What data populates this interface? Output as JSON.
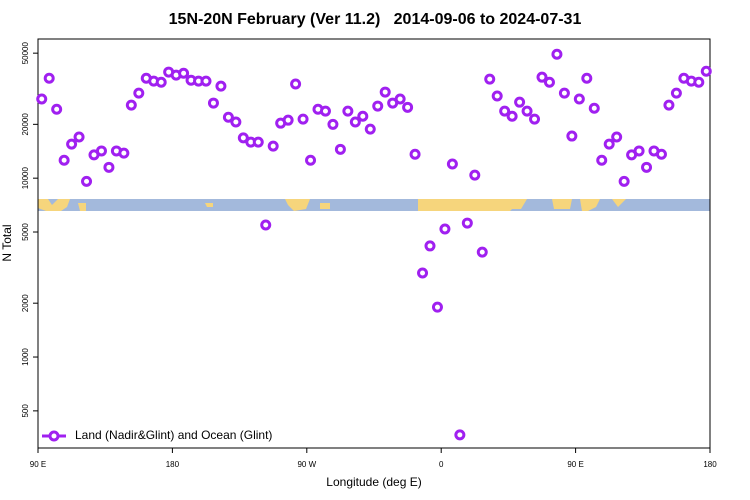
{
  "chart_data": {
    "type": "scatter",
    "title": "15N-20N February (Ver 11.2)   2014-09-06 to 2024-07-31",
    "xlabel": "Longitude (deg E)",
    "ylabel": "N Total",
    "xlim": [
      90,
      540
    ],
    "xticks": [
      {
        "value": 90,
        "label": "90 E"
      },
      180,
      {
        "value": 270,
        "label": "90 W"
      },
      {
        "value": 360,
        "label": "0"
      },
      {
        "value": 450,
        "label": "90 E"
      },
      {
        "value": 540,
        "label": "180"
      }
    ],
    "ylim": [
      310,
      60000
    ],
    "log_y": true,
    "yticks": [
      500,
      1000,
      2000,
      5000,
      10000,
      20000,
      50000
    ],
    "legend": "lower left",
    "series": [
      {
        "name": "Land (Nadir&Glint) and Ocean (Glint)",
        "color": "#a020f0",
        "x": [
          92.5,
          97.5,
          102.5,
          107.5,
          112.5,
          117.5,
          122.5,
          127.5,
          132.5,
          137.5,
          142.5,
          147.5,
          152.5,
          157.5,
          162.5,
          167.5,
          172.5,
          177.5,
          182.5,
          187.5,
          192.5,
          197.5,
          202.5,
          207.5,
          212.5,
          217.5,
          222.5,
          227.5,
          232.5,
          237.5,
          242.5,
          247.5,
          252.5,
          257.5,
          262.5,
          267.5,
          272.5,
          277.5,
          282.5,
          287.5,
          292.5,
          297.5,
          302.5,
          307.5,
          312.5,
          317.5,
          322.5,
          327.5,
          332.5,
          337.5,
          342.5,
          347.5,
          352.5,
          357.5,
          362.5,
          367.5,
          372.5,
          377.5,
          382.5,
          387.5,
          392.5,
          397.5,
          402.5,
          407.5,
          412.5,
          417.5,
          422.5,
          427.5,
          432.5,
          437.5,
          442.5,
          447.5,
          452.5,
          457.5,
          462.5,
          467.5,
          472.5,
          477.5,
          482.5,
          487.5,
          492.5,
          497.5,
          502.5,
          507.5,
          512.5,
          517.5,
          522.5,
          527.5,
          532.5,
          537.5
        ],
        "values": [
          27700,
          36200,
          24300,
          12600,
          15500,
          17000,
          9600,
          13500,
          14200,
          11500,
          14200,
          13800,
          25600,
          29900,
          36200,
          34900,
          34400,
          39200,
          37700,
          38600,
          35300,
          34900,
          34900,
          26300,
          32700,
          21900,
          20600,
          16800,
          15900,
          15900,
          5470,
          15100,
          20300,
          21100,
          33600,
          21400,
          12600,
          24300,
          23700,
          20000,
          14500,
          23700,
          20600,
          22200,
          18800,
          25300,
          30300,
          26300,
          27700,
          24900,
          13600,
          2950,
          4180,
          1900,
          5200,
          12000,
          367,
          5610,
          10400,
          3860,
          35800,
          28800,
          23700,
          22200,
          26600,
          23700,
          21400,
          36700,
          34400,
          49300,
          29900,
          17200,
          27700,
          36200,
          24600,
          12600,
          15500,
          17000,
          9600,
          13500,
          14200,
          11500,
          14200,
          13600,
          25600,
          29900,
          36200,
          34900,
          34400,
          39600
        ]
      }
    ]
  }
}
